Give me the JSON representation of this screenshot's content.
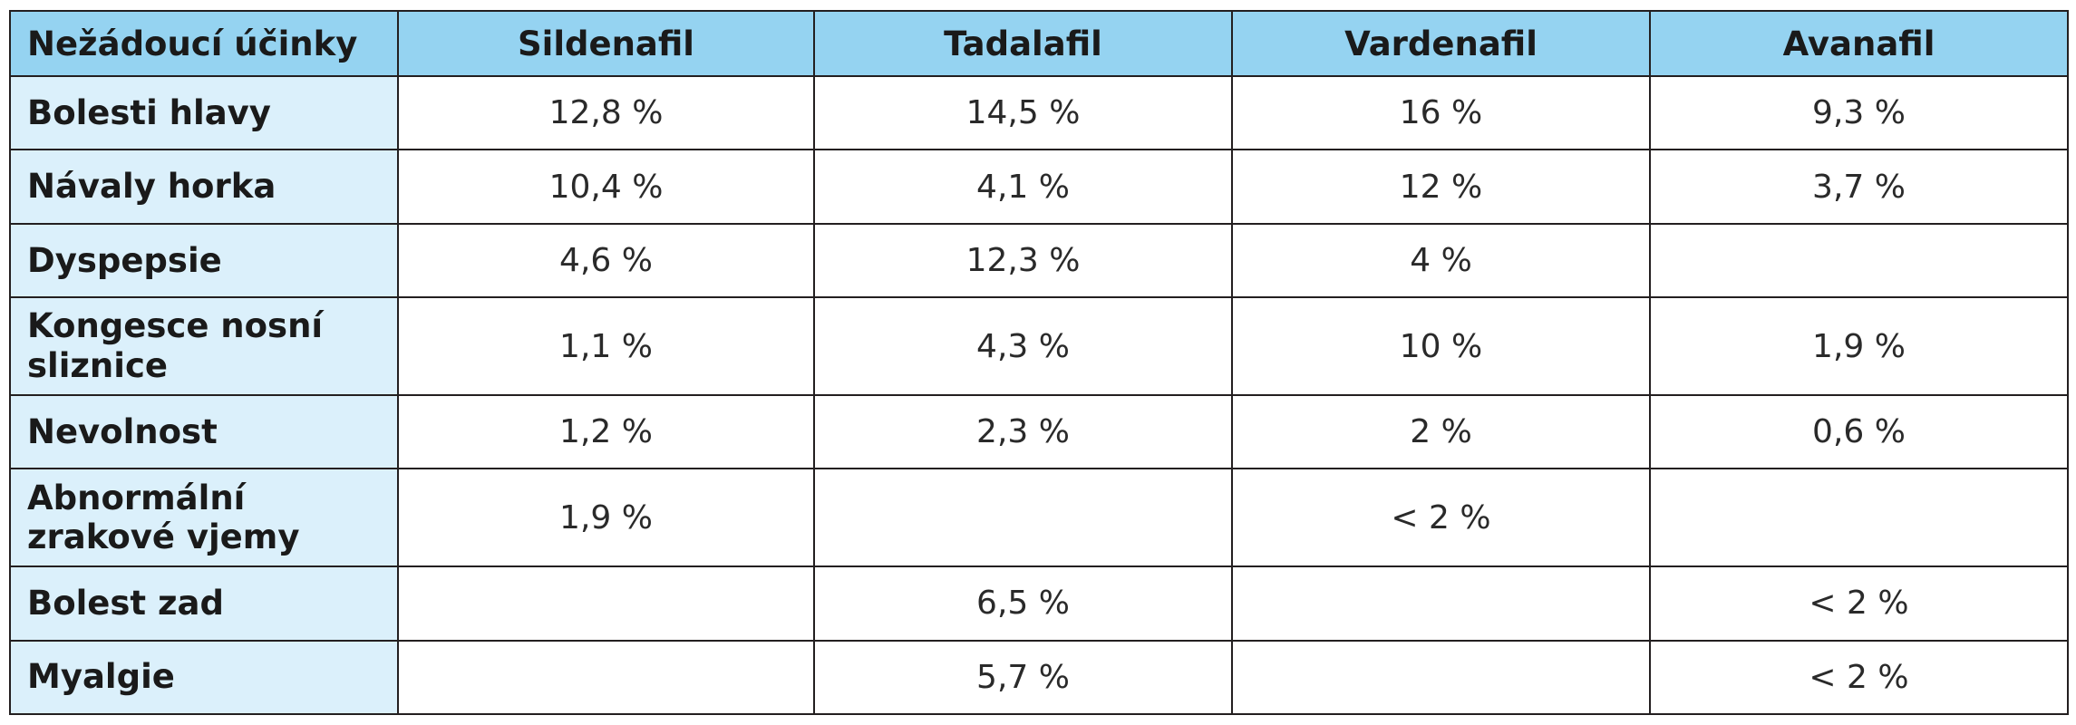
{
  "table": {
    "headers": [
      "Nežádoucí účinky",
      "Sildenafil",
      "Tadalafil",
      "Vardenafil",
      "Avanafil"
    ],
    "rows": [
      {
        "label": "Bolesti hlavy",
        "values": [
          "12,8 %",
          "14,5 %",
          "16 %",
          "9,3 %"
        ]
      },
      {
        "label": "Návaly horka",
        "values": [
          "10,4 %",
          "4,1 %",
          "12 %",
          "3,7 %"
        ]
      },
      {
        "label": "Dyspepsie",
        "values": [
          "4,6 %",
          "12,3 %",
          "4 %",
          ""
        ]
      },
      {
        "label": "Kongesce nosní sliznice",
        "values": [
          "1,1 %",
          "4,3 %",
          "10 %",
          "1,9 %"
        ]
      },
      {
        "label": "Nevolnost",
        "values": [
          "1,2 %",
          "2,3 %",
          "2 %",
          "0,6 %"
        ]
      },
      {
        "label": "Abnormální zrakové vjemy",
        "values": [
          "1,9 %",
          "",
          "< 2 %",
          ""
        ]
      },
      {
        "label": "Bolest zad",
        "values": [
          "",
          "6,5 %",
          "",
          "< 2 %"
        ]
      },
      {
        "label": "Myalgie",
        "values": [
          "",
          "5,7 %",
          "",
          "< 2 %"
        ]
      }
    ]
  }
}
